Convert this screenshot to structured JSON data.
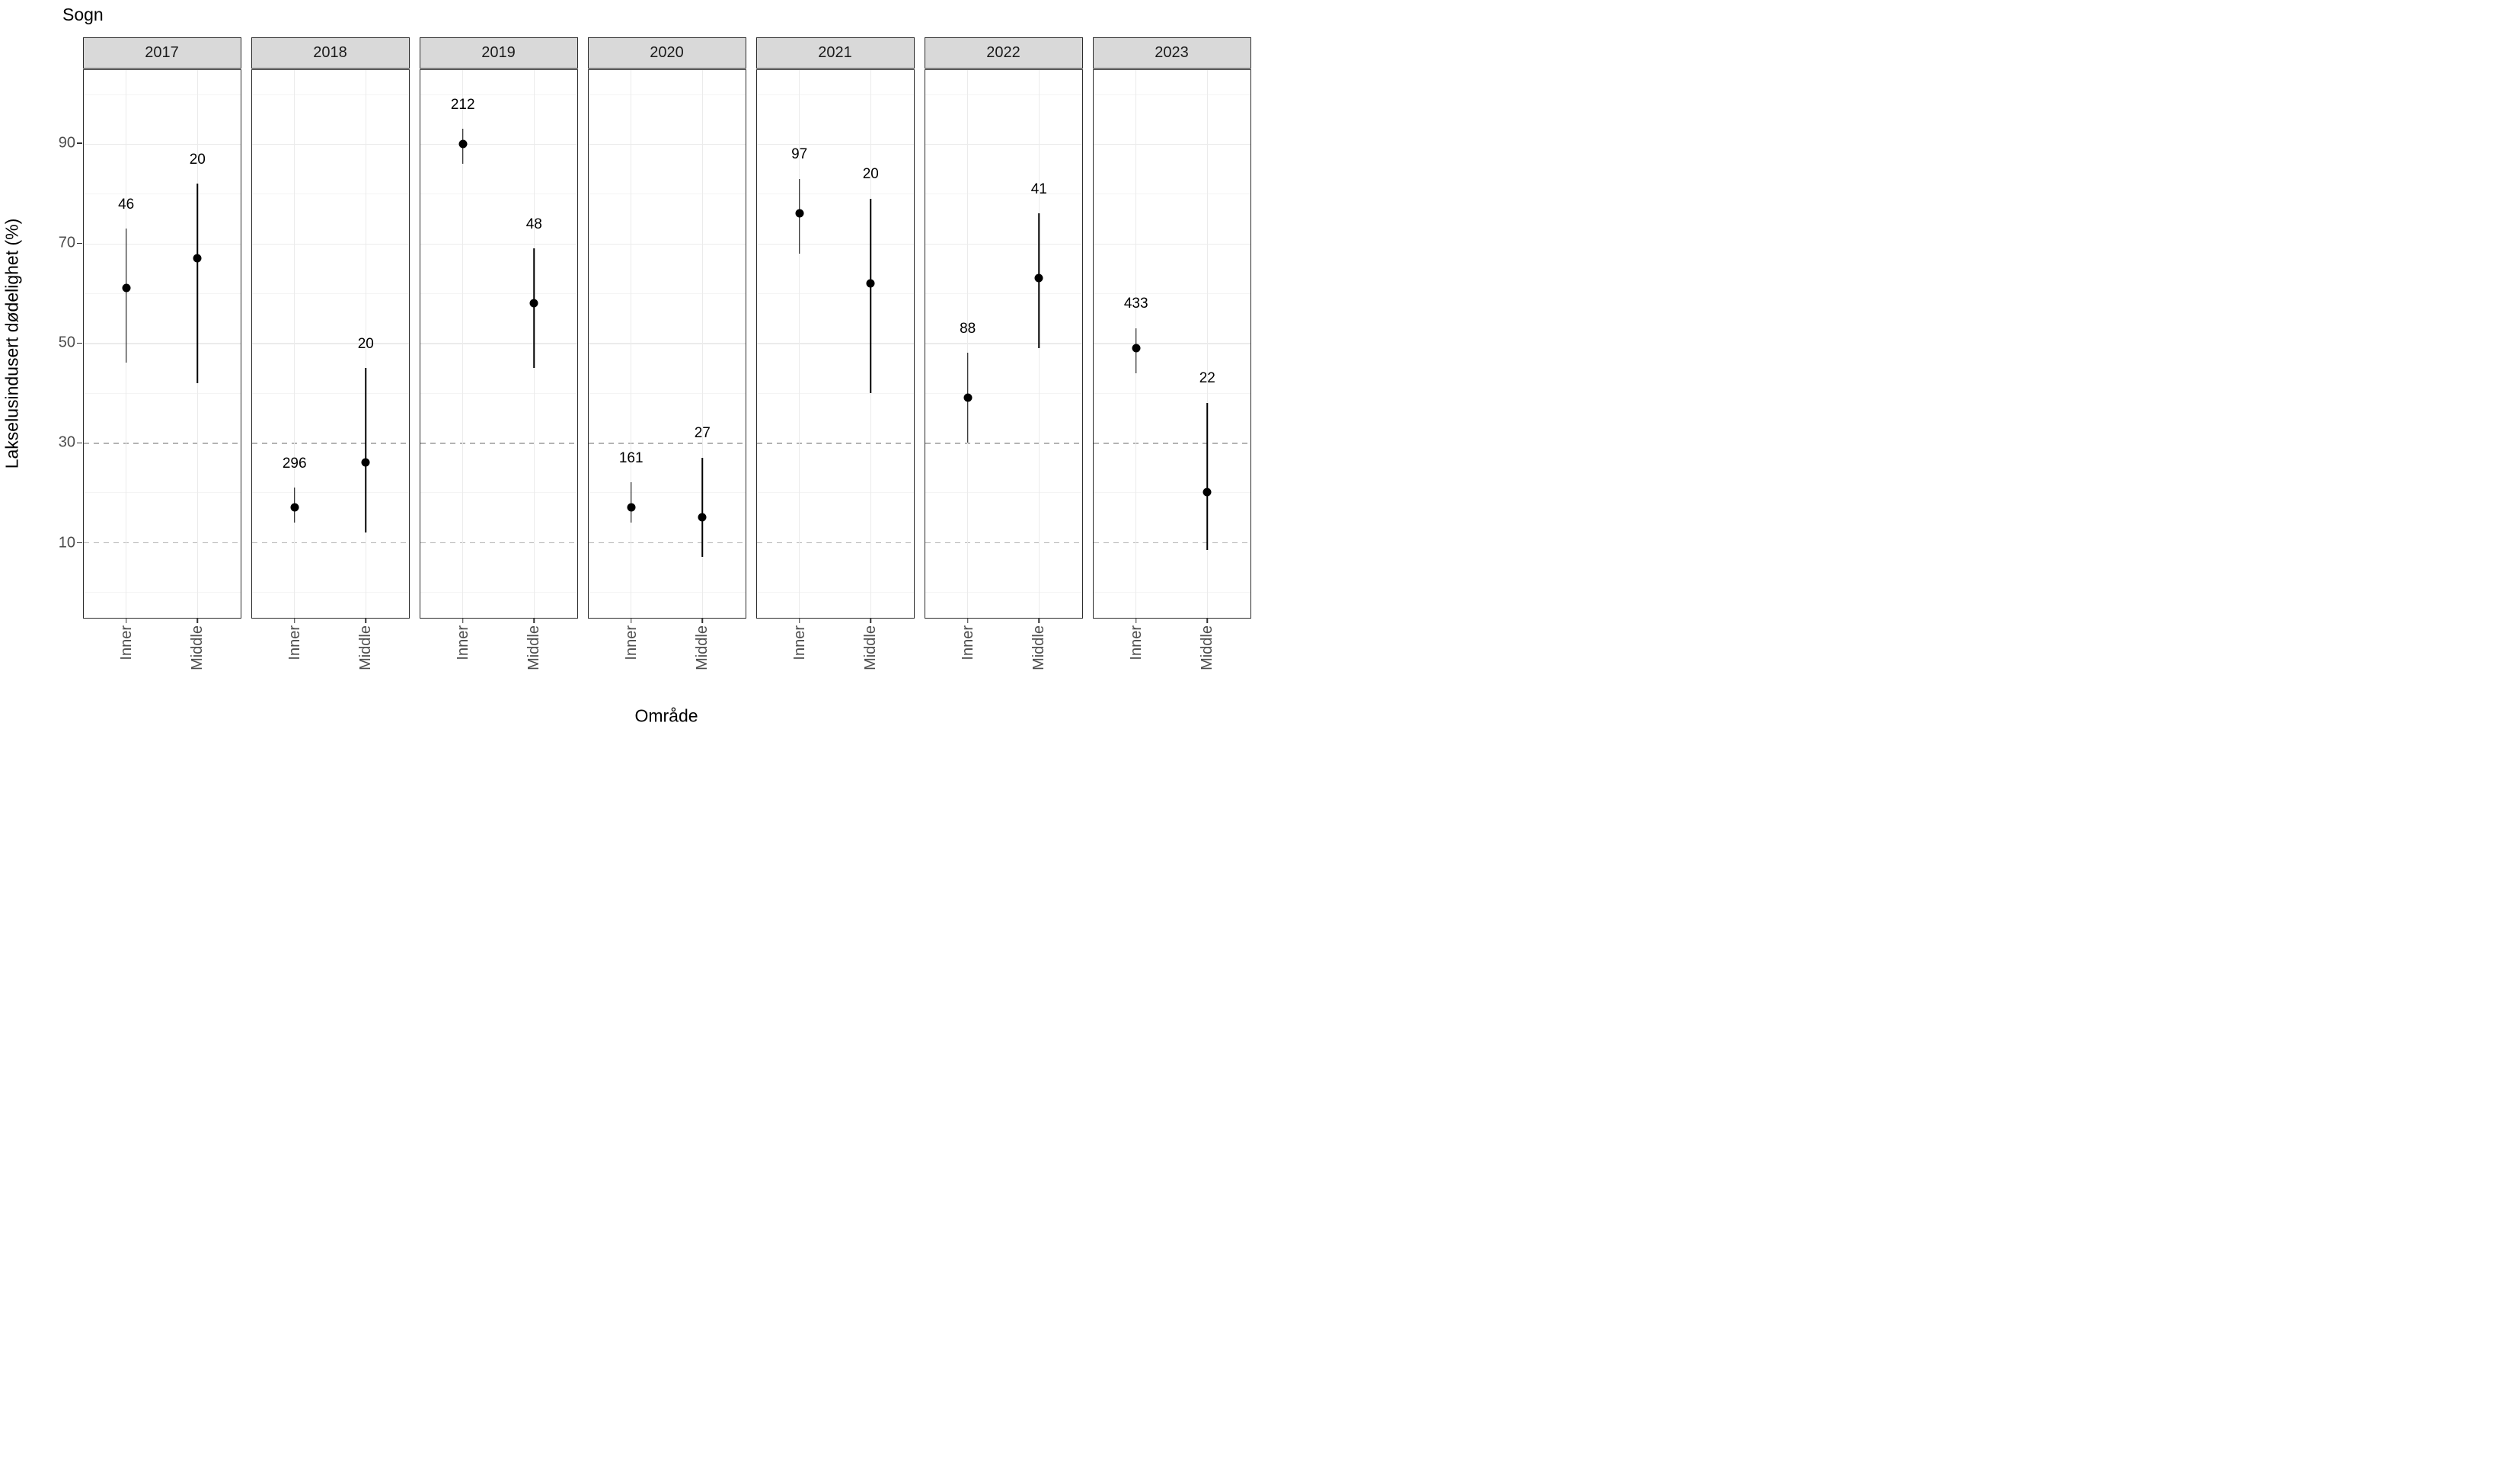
{
  "chart_data": {
    "type": "scatter",
    "subtype": "pointrange-faceted",
    "title": "Sogn",
    "xlabel": "Område",
    "ylabel": "Lakselusindusert dødelighet (%)",
    "facet_variable": "year",
    "categories": [
      "Inner",
      "Middle"
    ],
    "ylim": [
      -5.1,
      104.9
    ],
    "yticks": [
      10,
      30,
      50,
      70,
      90
    ],
    "solid_major_gridlines": [
      50,
      70,
      90
    ],
    "minor_gridlines": [
      0,
      20,
      40,
      60,
      80,
      100
    ],
    "dashed_reference_lines": [
      10,
      30
    ],
    "grid": true,
    "legend_position": "none",
    "facets": [
      {
        "year": "2017",
        "points": [
          {
            "x": "Inner",
            "y": 61,
            "ci_low": 46,
            "ci_high": 73,
            "n_label": "46"
          },
          {
            "x": "Middle",
            "y": 67,
            "ci_low": 42,
            "ci_high": 82,
            "n_label": "20"
          }
        ]
      },
      {
        "year": "2018",
        "points": [
          {
            "x": "Inner",
            "y": 17,
            "ci_low": 14,
            "ci_high": 21,
            "n_label": "296"
          },
          {
            "x": "Middle",
            "y": 26,
            "ci_low": 12,
            "ci_high": 45,
            "n_label": "20"
          }
        ]
      },
      {
        "year": "2019",
        "points": [
          {
            "x": "Inner",
            "y": 90,
            "ci_low": 86,
            "ci_high": 93,
            "n_label": "212"
          },
          {
            "x": "Middle",
            "y": 58,
            "ci_low": 45,
            "ci_high": 69,
            "n_label": "48"
          }
        ]
      },
      {
        "year": "2020",
        "points": [
          {
            "x": "Inner",
            "y": 17,
            "ci_low": 14,
            "ci_high": 22,
            "n_label": "161"
          },
          {
            "x": "Middle",
            "y": 15,
            "ci_low": 7,
            "ci_high": 27,
            "n_label": "27"
          }
        ]
      },
      {
        "year": "2021",
        "points": [
          {
            "x": "Inner",
            "y": 76,
            "ci_low": 68,
            "ci_high": 83,
            "n_label": "97"
          },
          {
            "x": "Middle",
            "y": 62,
            "ci_low": 40,
            "ci_high": 79,
            "n_label": "20"
          }
        ]
      },
      {
        "year": "2022",
        "points": [
          {
            "x": "Inner",
            "y": 39,
            "ci_low": 30,
            "ci_high": 48,
            "n_label": "88"
          },
          {
            "x": "Middle",
            "y": 63,
            "ci_low": 49,
            "ci_high": 76,
            "n_label": "41"
          }
        ]
      },
      {
        "year": "2023",
        "points": [
          {
            "x": "Inner",
            "y": 49,
            "ci_low": 44,
            "ci_high": 53,
            "n_label": "433"
          },
          {
            "x": "Middle",
            "y": 20,
            "ci_low": 8.5,
            "ci_high": 38,
            "n_label": "22"
          }
        ]
      }
    ]
  }
}
